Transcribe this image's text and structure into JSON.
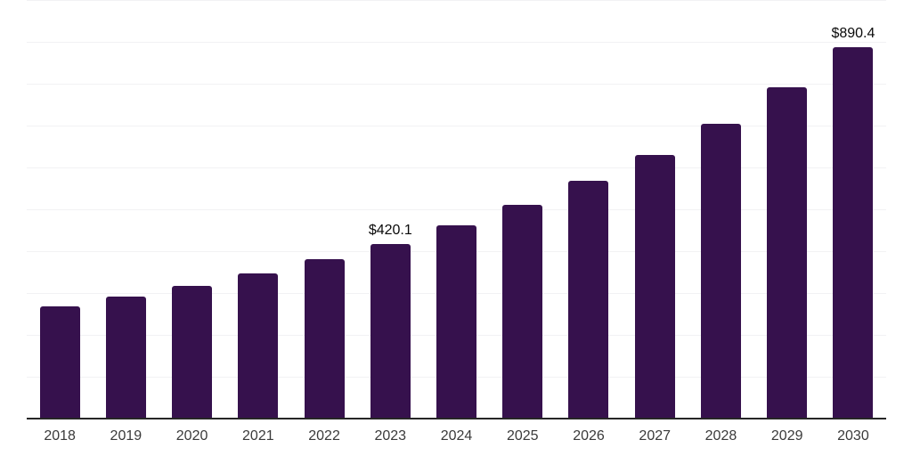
{
  "chart_data": {
    "type": "bar",
    "title": "",
    "xlabel": "",
    "ylabel": "",
    "categories": [
      "2018",
      "2019",
      "2020",
      "2021",
      "2022",
      "2023",
      "2024",
      "2025",
      "2026",
      "2027",
      "2028",
      "2029",
      "2030"
    ],
    "values": [
      271,
      294,
      319,
      349,
      383,
      420.1,
      463,
      512,
      570,
      633,
      706,
      793,
      890.4
    ],
    "data_labels": [
      "",
      "",
      "",
      "",
      "",
      "$420.1",
      "",
      "",
      "",
      "",
      "",
      "",
      "$890.4"
    ],
    "ylim": [
      0,
      1000
    ],
    "gridline_step": 100,
    "grid": true,
    "legend": false,
    "colors": {
      "bar": "#36114d",
      "axis_line": "#262626",
      "gridline": "#f2f2f4",
      "data_label": "#0a0a0a",
      "tick_label": "#3a3a3a",
      "background": "#ffffff"
    }
  }
}
